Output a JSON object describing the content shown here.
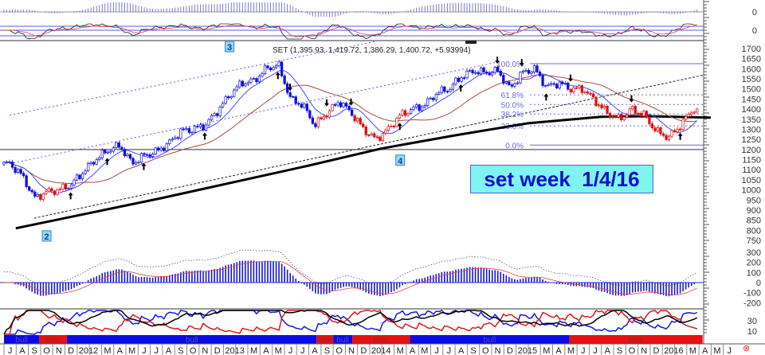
{
  "chart_data": {
    "type": "candlestick",
    "title": "SET (1,395.93, 1,419.72, 1,386.29, 1,400.72, +5.93994)",
    "annotation": "set week  1/4/16",
    "months": [
      "2011-07",
      "2011-08",
      "2011-09",
      "2011-10",
      "2011-11",
      "2011-12",
      "2012-01",
      "2012-02",
      "2012-03",
      "2012-04",
      "2012-05",
      "2012-06",
      "2012-07",
      "2012-08",
      "2012-09",
      "2012-10",
      "2012-11",
      "2012-12",
      "2013-01",
      "2013-02",
      "2013-03",
      "2013-04",
      "2013-05",
      "2013-06",
      "2013-07",
      "2013-08",
      "2013-09",
      "2013-10",
      "2013-11",
      "2013-12",
      "2014-01",
      "2014-02",
      "2014-03",
      "2014-04",
      "2014-05",
      "2014-06",
      "2014-07",
      "2014-08",
      "2014-09",
      "2014-10",
      "2014-11",
      "2014-12",
      "2015-01",
      "2015-02",
      "2015-03",
      "2015-04",
      "2015-05",
      "2015-06",
      "2015-07",
      "2015-08",
      "2015-09",
      "2015-10",
      "2015-11",
      "2015-12",
      "2016-01",
      "2016-02",
      "2016-03",
      "2016-04"
    ],
    "close": [
      1130,
      1070,
      960,
      990,
      1000,
      1025,
      1090,
      1150,
      1195,
      1220,
      1130,
      1170,
      1190,
      1230,
      1290,
      1300,
      1320,
      1390,
      1470,
      1530,
      1540,
      1600,
      1620,
      1450,
      1420,
      1320,
      1380,
      1440,
      1380,
      1300,
      1250,
      1300,
      1370,
      1400,
      1420,
      1480,
      1500,
      1560,
      1590,
      1580,
      1590,
      1500,
      1580,
      1600,
      1510,
      1530,
      1500,
      1500,
      1440,
      1380,
      1350,
      1400,
      1370,
      1290,
      1260,
      1320,
      1400,
      1400.72
    ],
    "long_ma": [
      {
        "date": "2011-07",
        "value": 810
      },
      {
        "date": "2012-07",
        "value": 960
      },
      {
        "date": "2013-07",
        "value": 1120
      },
      {
        "date": "2014-01",
        "value": 1205
      },
      {
        "date": "2014-07",
        "value": 1270
      },
      {
        "date": "2015-01",
        "value": 1330
      },
      {
        "date": "2015-07",
        "value": 1362
      },
      {
        "date": "2015-11",
        "value": 1365
      },
      {
        "date": "2016-04",
        "value": 1358
      }
    ],
    "trendlines": [
      {
        "style": "dashed-black",
        "from": {
          "date": "2011-09",
          "value": 860
        },
        "to": {
          "date": "2016-04",
          "value": 1570
        }
      },
      {
        "style": "dotted-blue",
        "from": {
          "date": "2011-07",
          "value": 1370
        },
        "to": {
          "date": "2014-01",
          "value": 1735
        }
      },
      {
        "style": "dotted-blue",
        "from": {
          "date": "2011-07",
          "value": 1130
        },
        "to": {
          "date": "2014-11",
          "value": 1633
        }
      }
    ],
    "horizontal_line": 1200,
    "fibonacci": [
      {
        "label": "100.0%",
        "value": 1625
      },
      {
        "label": "61.8%",
        "value": 1471
      },
      {
        "label": "50.0%",
        "value": 1423
      },
      {
        "label": "38.2%",
        "value": 1376
      },
      {
        "label": "23.6%",
        "value": 1317
      },
      {
        "label": "0.0%",
        "value": 1222
      }
    ],
    "wave_labels": [
      {
        "label": "2",
        "date": "2011-10",
        "value": 770
      },
      {
        "label": "3",
        "date": "2013-01",
        "value": 1708
      },
      {
        "label": "4",
        "date": "2014-03",
        "value": 1145
      }
    ],
    "arrows": [
      {
        "date": "2011-12",
        "dir": "up"
      },
      {
        "date": "2012-03",
        "dir": "up"
      },
      {
        "date": "2012-06",
        "dir": "up"
      },
      {
        "date": "2012-11",
        "dir": "up"
      },
      {
        "date": "2013-05",
        "dir": "up"
      },
      {
        "date": "2013-06",
        "dir": "down"
      },
      {
        "date": "2013-09",
        "dir": "down"
      },
      {
        "date": "2013-11",
        "dir": "down"
      },
      {
        "date": "2014-03",
        "dir": "up"
      },
      {
        "date": "2014-08",
        "dir": "up"
      },
      {
        "date": "2014-11",
        "dir": "down"
      },
      {
        "date": "2015-01",
        "dir": "down"
      },
      {
        "date": "2015-03",
        "dir": "up"
      },
      {
        "date": "2015-05",
        "dir": "down"
      },
      {
        "date": "2015-10",
        "dir": "down"
      },
      {
        "date": "2016-02",
        "dir": "up"
      }
    ],
    "trend_bands": [
      {
        "label": "bull",
        "start": "2011-07-01",
        "end": "2011-09-28"
      },
      {
        "label": "bear",
        "start": "2011-09-28",
        "end": "2011-12-06"
      },
      {
        "label": "bull",
        "start": "2011-12-06",
        "end": "2013-08-20"
      },
      {
        "label": "bear",
        "start": "2013-08-20",
        "end": "2013-10-01"
      },
      {
        "label": "bull",
        "start": "2013-10-01",
        "end": "2013-11-18"
      },
      {
        "label": "bear",
        "start": "2013-11-18",
        "end": "2014-04-10"
      },
      {
        "label": "bull",
        "start": "2014-04-10",
        "end": "2015-05-12"
      },
      {
        "label": "bear",
        "start": "2015-05-12",
        "end": "2016-04-10"
      }
    ],
    "month_axis_labels": [
      "J",
      "A",
      "S",
      "O",
      "N",
      "D",
      "2012",
      "",
      "M",
      "A",
      "M",
      "J",
      "J",
      "A",
      "S",
      "O",
      "N",
      "D",
      "2013",
      "",
      "M",
      "A",
      "M",
      "J",
      "J",
      "A",
      "S",
      "O",
      "N",
      "D",
      "2014",
      "",
      "M",
      "A",
      "M",
      "J",
      "J",
      "A",
      "S",
      "O",
      "N",
      "D",
      "2015",
      "",
      "M",
      "A",
      "M",
      "J",
      "J",
      "A",
      "S",
      "O",
      "N",
      "D",
      "2016",
      "",
      "M",
      "A",
      "M",
      "J"
    ],
    "price_axis": {
      "ticks": [
        1700,
        1650,
        1600,
        1550,
        1500,
        1450,
        1400,
        1350,
        1300,
        1250,
        1200,
        1150,
        1100,
        1050,
        1000,
        950,
        900,
        850,
        800,
        750
      ]
    },
    "macd_axis": {
      "ticks": [
        300,
        200,
        100,
        0,
        -100,
        -200
      ]
    },
    "adx_axis": {
      "ticks": [
        30,
        10
      ]
    },
    "top_panel_axis": {
      "ticks": [
        "0",
        "0"
      ]
    },
    "colors": {
      "bull": "#1010e0",
      "bear": "#e01010",
      "ma_short": "#4848ff",
      "ma_mid": "#a05040",
      "ma_long": "#000000",
      "fib": "#6a6ad8",
      "note_bg": "#7ff4f0"
    }
  }
}
